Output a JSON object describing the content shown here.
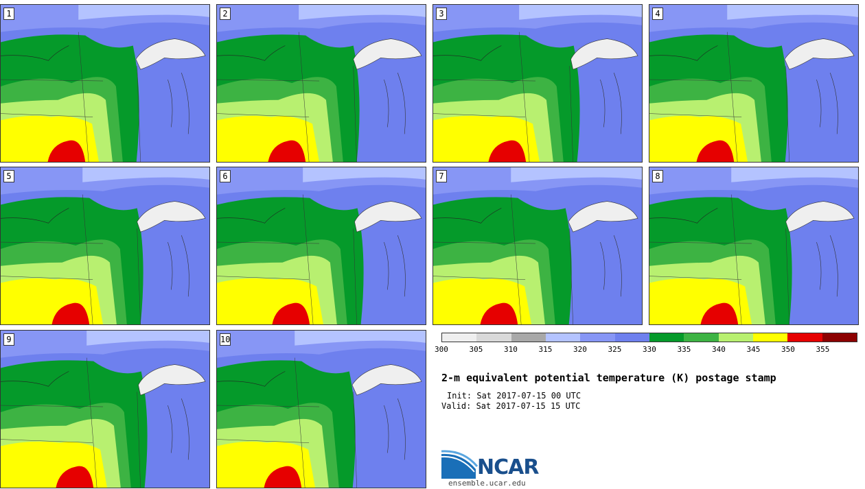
{
  "panels": [
    {
      "label": "1"
    },
    {
      "label": "2"
    },
    {
      "label": "3"
    },
    {
      "label": "4"
    },
    {
      "label": "5"
    },
    {
      "label": "6"
    },
    {
      "label": "7"
    },
    {
      "label": "8"
    },
    {
      "label": "9"
    },
    {
      "label": "10"
    }
  ],
  "colorbar": {
    "colors": [
      "#efefef",
      "#d9d9d9",
      "#a8a8a8",
      "#b4c3ff",
      "#8796f5",
      "#6e80ee",
      "#059a2a",
      "#3db343",
      "#b8f070",
      "#ffff00",
      "#e60000",
      "#8c0000"
    ],
    "tick_labels": [
      "300",
      "305",
      "310",
      "315",
      "320",
      "325",
      "330",
      "335",
      "340",
      "345",
      "350",
      "355"
    ]
  },
  "title": "2-m equivalent potential temperature (K) postage stamp",
  "init": "Init: Sat 2017-07-15 00 UTC",
  "valid": "Valid: Sat 2017-07-15 15 UTC",
  "logo": {
    "name": "NCAR",
    "url": "ensemble.ucar.edu"
  }
}
